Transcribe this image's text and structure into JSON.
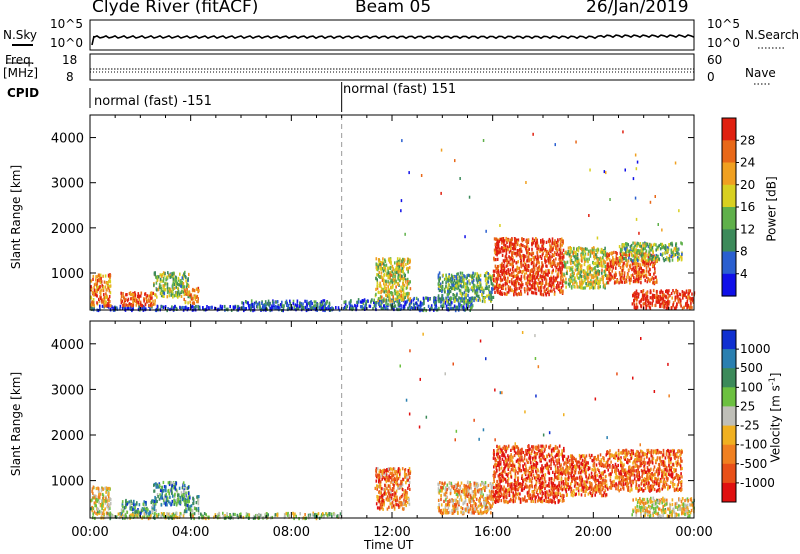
{
  "header": {
    "station": "Clyde River (fitACF)",
    "beam": "Beam 05",
    "date": "26/Jan/2019"
  },
  "top_panels": {
    "nsky_label": "N.Sky",
    "nsky_ticks": [
      "10^5",
      "10^0"
    ],
    "nsearch_label": "N.Search",
    "nsearch_ticks": [
      "10^5",
      "10^0"
    ],
    "freq_label_1": "Freq.",
    "freq_label_2": "[MHz]",
    "freq_ticks": [
      "18",
      "8"
    ],
    "nave_label": "Nave",
    "nave_ticks": [
      "60",
      "0"
    ],
    "cpid_label": "CPID",
    "cpid_modes": [
      {
        "label": "normal (fast) -151",
        "start_hour": 0
      },
      {
        "label": "normal (fast) 151",
        "start_hour": 10
      }
    ]
  },
  "chart_data": [
    {
      "type": "heatmap",
      "name": "power",
      "ylabel": "Slant Range [km]",
      "xlabel": "",
      "xlim_hours": [
        0,
        24
      ],
      "ylim_km": [
        180,
        4500
      ],
      "yticks": [
        1000,
        2000,
        3000,
        4000
      ],
      "colorbar": {
        "label": "Power [dB]",
        "ticks": [
          "4",
          "8",
          "12",
          "16",
          "20",
          "24",
          "28"
        ],
        "colors": [
          "#1010e8",
          "#2a5fd0",
          "#3c8a5a",
          "#5fb04a",
          "#d8d020",
          "#f0a020",
          "#e86818",
          "#e02010"
        ]
      },
      "scatter_regions": [
        {
          "t0": 0.0,
          "t1": 10.0,
          "r0": 200,
          "r1": 300,
          "level": 0.15
        },
        {
          "t0": 0.0,
          "t1": 0.8,
          "r0": 300,
          "r1": 1000,
          "level": 0.75
        },
        {
          "t0": 1.2,
          "t1": 2.6,
          "r0": 300,
          "r1": 600,
          "level": 0.85
        },
        {
          "t0": 2.5,
          "t1": 3.9,
          "r0": 500,
          "r1": 1050,
          "level": 0.45
        },
        {
          "t0": 3.7,
          "t1": 4.3,
          "r0": 350,
          "r1": 700,
          "level": 0.7
        },
        {
          "t0": 6.0,
          "t1": 9.5,
          "r0": 220,
          "r1": 420,
          "level": 0.2
        },
        {
          "t0": 10.0,
          "t1": 12.8,
          "r0": 220,
          "r1": 450,
          "level": 0.2
        },
        {
          "t0": 11.3,
          "t1": 12.7,
          "r0": 400,
          "r1": 1350,
          "level": 0.55
        },
        {
          "t0": 12.8,
          "t1": 15.2,
          "r0": 200,
          "r1": 500,
          "level": 0.25
        },
        {
          "t0": 13.8,
          "t1": 16.0,
          "r0": 400,
          "r1": 1050,
          "level": 0.4
        },
        {
          "t0": 16.0,
          "t1": 18.8,
          "r0": 550,
          "r1": 1800,
          "level": 0.9
        },
        {
          "t0": 18.8,
          "t1": 20.5,
          "r0": 700,
          "r1": 1600,
          "level": 0.55
        },
        {
          "t0": 20.5,
          "t1": 22.5,
          "r0": 800,
          "r1": 1500,
          "level": 0.85
        },
        {
          "t0": 21.0,
          "t1": 23.5,
          "r0": 1300,
          "r1": 1700,
          "level": 0.45
        },
        {
          "t0": 21.5,
          "t1": 24.0,
          "r0": 250,
          "r1": 650,
          "level": 0.95
        }
      ]
    },
    {
      "type": "heatmap",
      "name": "velocity",
      "ylabel": "Slant Range [km]",
      "xlabel": "Time UT",
      "xlim_hours": [
        0,
        24
      ],
      "ylim_km": [
        180,
        4500
      ],
      "xticks": [
        "00:00",
        "04:00",
        "08:00",
        "12:00",
        "16:00",
        "20:00",
        "00:00"
      ],
      "yticks": [
        1000,
        2000,
        3000,
        4000
      ],
      "colorbar": {
        "label": "Velocity [m s^-1]",
        "ticks": [
          "1000",
          "500",
          "100",
          "25",
          "-25",
          "-100",
          "-500",
          "-1000"
        ],
        "colors": [
          "#1030d0",
          "#2a7fb0",
          "#3c8a5a",
          "#6cc040",
          "#bfbfb8",
          "#f0b020",
          "#f08020",
          "#e85018",
          "#e01010"
        ]
      },
      "scatter_regions": [
        {
          "t0": 0.0,
          "t1": 10.0,
          "r0": 200,
          "r1": 320,
          "level": 0.45
        },
        {
          "t0": 0.0,
          "t1": 0.8,
          "r0": 300,
          "r1": 900,
          "level": 0.55
        },
        {
          "t0": 1.2,
          "t1": 2.6,
          "r0": 300,
          "r1": 600,
          "level": 0.3
        },
        {
          "t0": 2.5,
          "t1": 3.9,
          "r0": 500,
          "r1": 1000,
          "level": 0.25
        },
        {
          "t0": 3.7,
          "t1": 4.3,
          "r0": 350,
          "r1": 700,
          "level": 0.3
        },
        {
          "t0": 11.3,
          "t1": 12.7,
          "r0": 400,
          "r1": 1300,
          "level": 0.75
        },
        {
          "t0": 13.8,
          "t1": 16.0,
          "r0": 300,
          "r1": 1000,
          "level": 0.65
        },
        {
          "t0": 16.0,
          "t1": 18.8,
          "r0": 550,
          "r1": 1800,
          "level": 0.85
        },
        {
          "t0": 18.8,
          "t1": 20.5,
          "r0": 700,
          "r1": 1600,
          "level": 0.8
        },
        {
          "t0": 20.5,
          "t1": 23.5,
          "r0": 800,
          "r1": 1700,
          "level": 0.8
        },
        {
          "t0": 21.5,
          "t1": 24.0,
          "r0": 250,
          "r1": 650,
          "level": 0.55
        }
      ]
    }
  ]
}
